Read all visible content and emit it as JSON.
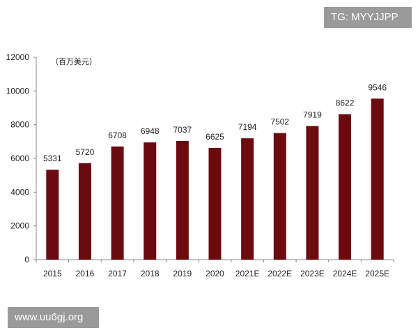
{
  "watermarks": {
    "top_right": "TG: MYYJJPP",
    "bottom_left": "www.uu6gj.org"
  },
  "chart_data": {
    "type": "bar",
    "unit_label": "（百万美元）",
    "categories": [
      "2015",
      "2016",
      "2017",
      "2018",
      "2019",
      "2020",
      "2021E",
      "2022E",
      "2023E",
      "2024E",
      "2025E"
    ],
    "values": [
      5331,
      5720,
      6708,
      6948,
      7037,
      6625,
      7194,
      7502,
      7919,
      8622,
      9546
    ],
    "yticks": [
      0,
      2000,
      4000,
      6000,
      8000,
      10000,
      12000
    ],
    "ylim": [
      0,
      12000
    ],
    "bar_color": "#6b0a0f",
    "grid": false,
    "legend": "none"
  }
}
